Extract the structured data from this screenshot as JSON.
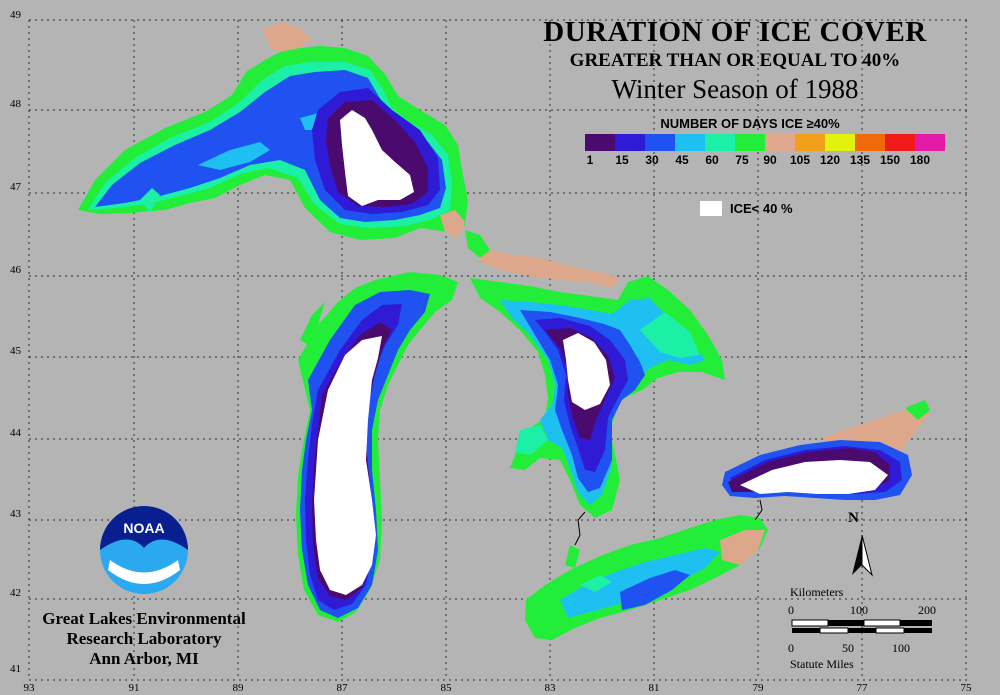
{
  "title": {
    "line1": "DURATION OF ICE COVER",
    "line2": "GREATER THAN OR EQUAL TO 40%",
    "line3": "Winter Season of 1988"
  },
  "legend": {
    "title": "NUMBER OF DAYS ICE ≥40%",
    "labels": [
      "1",
      "15",
      "30",
      "45",
      "60",
      "75",
      "90",
      "105",
      "120",
      "135",
      "150",
      "180"
    ],
    "colors": [
      "#4b0a6e",
      "#2f1ad6",
      "#1f52f0",
      "#1ec0f2",
      "#1cf0a6",
      "#22ee3a",
      "#e0a98e",
      "#f0a01a",
      "#e0f20e",
      "#f06a0a",
      "#f01a1a",
      "#e21aa6"
    ],
    "ice_label": "ICE< 40 %",
    "ice_color": "#ffffff"
  },
  "axes": {
    "longitude_labels": [
      "93",
      "91",
      "89",
      "87",
      "85",
      "83",
      "81",
      "79",
      "77",
      "75"
    ],
    "latitude_labels": [
      "49",
      "48",
      "47",
      "46",
      "45",
      "44",
      "43",
      "42",
      "41"
    ]
  },
  "organization": {
    "line1": "Great Lakes Environmental",
    "line2": "Research Laboratory",
    "line3": "Ann Arbor, MI"
  },
  "logo": {
    "text": "NOAA"
  },
  "north_label": "N",
  "scale": {
    "km_title": "Kilometers",
    "km_ticks": [
      "0",
      "100",
      "200"
    ],
    "mi_ticks": [
      "0",
      "50",
      "100"
    ],
    "mi_title": "Statute Miles"
  },
  "map_colors": {
    "background": "#b4b4b4",
    "land_tan": "#dca78a",
    "ice_free": "#ffffff"
  }
}
